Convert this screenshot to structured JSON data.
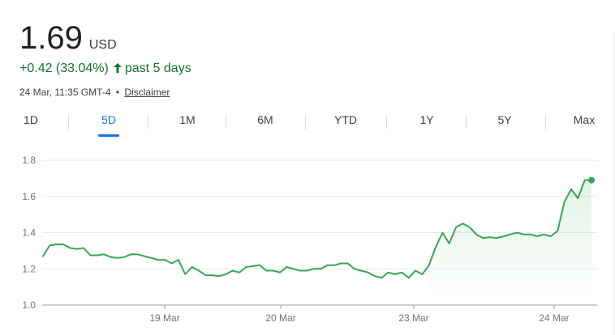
{
  "quote": {
    "price": "1.69",
    "currency": "USD",
    "change": "+0.42 (33.04%)",
    "change_arrow": "up-arrow-icon",
    "period": "past 5 days",
    "timestamp": "24 Mar, 11:35 GMT-4",
    "separator": "•",
    "disclaimer": "Disclaimer"
  },
  "tabs": [
    {
      "label": "1D",
      "active": false
    },
    {
      "label": "5D",
      "active": true
    },
    {
      "label": "1M",
      "active": false
    },
    {
      "label": "6M",
      "active": false
    },
    {
      "label": "YTD",
      "active": false
    },
    {
      "label": "1Y",
      "active": false
    },
    {
      "label": "5Y",
      "active": false
    },
    {
      "label": "Max",
      "active": false
    }
  ],
  "colors": {
    "accent": "#1a73e8",
    "positive": "#34a853",
    "positive_text": "#137333",
    "grid": "#e8eaed"
  },
  "chart_data": {
    "type": "line",
    "y_ticks": [
      "1.8",
      "1.6",
      "1.4",
      "1.2",
      "1.0"
    ],
    "ylim": [
      1.0,
      1.8
    ],
    "x_ticks": [
      "19 Mar",
      "20 Mar",
      "23 Mar",
      "24 Mar"
    ],
    "grid": true,
    "values": [
      1.27,
      1.33,
      1.335,
      1.335,
      1.315,
      1.31,
      1.315,
      1.275,
      1.275,
      1.28,
      1.265,
      1.26,
      1.265,
      1.28,
      1.28,
      1.27,
      1.26,
      1.25,
      1.25,
      1.23,
      1.25,
      1.17,
      1.21,
      1.19,
      1.165,
      1.165,
      1.16,
      1.17,
      1.19,
      1.18,
      1.21,
      1.215,
      1.22,
      1.19,
      1.19,
      1.18,
      1.21,
      1.2,
      1.19,
      1.19,
      1.2,
      1.2,
      1.22,
      1.22,
      1.23,
      1.23,
      1.2,
      1.19,
      1.18,
      1.16,
      1.15,
      1.18,
      1.17,
      1.18,
      1.15,
      1.19,
      1.17,
      1.22,
      1.32,
      1.4,
      1.34,
      1.43,
      1.45,
      1.43,
      1.39,
      1.37,
      1.375,
      1.37,
      1.38,
      1.39,
      1.4,
      1.39,
      1.39,
      1.38,
      1.39,
      1.38,
      1.41,
      1.57,
      1.64,
      1.59,
      1.69,
      1.69
    ]
  }
}
